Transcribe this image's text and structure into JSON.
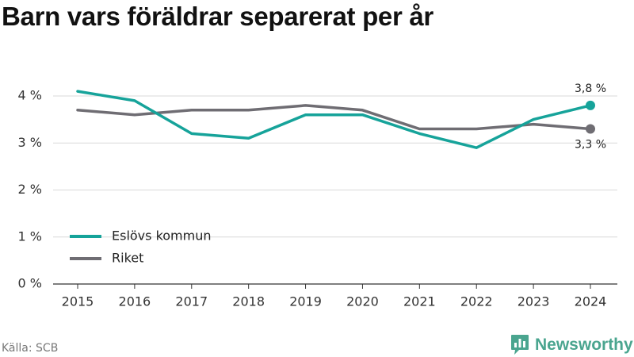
{
  "chart_data": {
    "type": "line",
    "title": "Barn vars föräldrar separerat per år",
    "xlabel": "",
    "ylabel": "",
    "categories": [
      "2015",
      "2016",
      "2017",
      "2018",
      "2019",
      "2020",
      "2021",
      "2022",
      "2023",
      "2024"
    ],
    "ylim": [
      0,
      4.5
    ],
    "yticks": [
      0,
      1,
      2,
      3,
      4
    ],
    "ytick_labels": [
      "0 %",
      "1 %",
      "2 %",
      "3 %",
      "4 %"
    ],
    "grid": true,
    "legend_position": "bottom-left",
    "series": [
      {
        "name": "Eslövs kommun",
        "color": "#16a39a",
        "values": [
          4.1,
          3.9,
          3.2,
          3.1,
          3.6,
          3.6,
          3.2,
          2.9,
          3.5,
          3.8
        ],
        "end_label": "3,8 %"
      },
      {
        "name": "Riket",
        "color": "#6f6d73",
        "values": [
          3.7,
          3.6,
          3.7,
          3.7,
          3.8,
          3.7,
          3.3,
          3.3,
          3.4,
          3.3
        ],
        "end_label": "3,3 %"
      }
    ]
  },
  "source": "Källa: SCB",
  "brand": {
    "name": "Newsworthy",
    "icon": "bar-chart-icon",
    "color": "#4aa58f"
  }
}
